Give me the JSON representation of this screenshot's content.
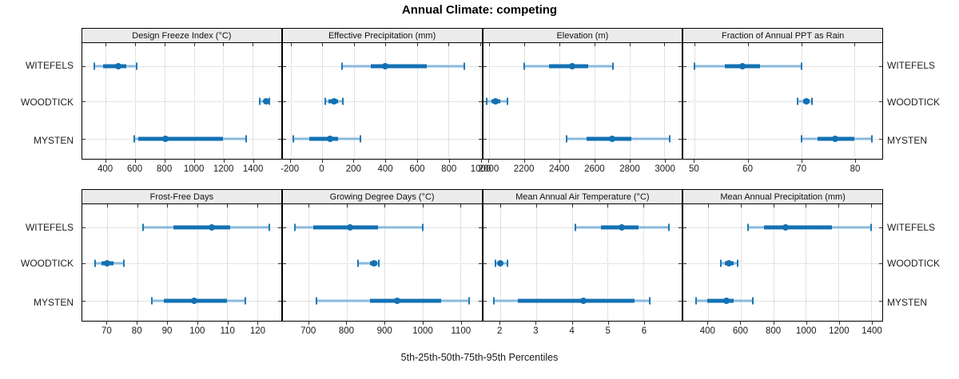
{
  "title": "Annual Climate: competing",
  "caption": "5th-25th-50th-75th-95th Percentiles",
  "sites": [
    "WITEFELS",
    "WOODTICK",
    "MYSTEN"
  ],
  "colors": {
    "median_and_box": "#1371b4",
    "whisker": "#8ab9dc",
    "cap": "#1f78b4",
    "grid": "#c6c6c6",
    "strip_bg": "#ececec",
    "panel_border": "#000000"
  },
  "chart_data": [
    {
      "type": "interval",
      "title": "Design Freeze Index (°C)",
      "row": 0,
      "col": 0,
      "xlim": [
        240,
        1595
      ],
      "ticks": [
        400,
        600,
        800,
        1000,
        1200,
        1400
      ],
      "series": [
        {
          "site": "WITEFELS",
          "p5": 320,
          "p25": 380,
          "p50": 487,
          "p75": 540,
          "p95": 612
        },
        {
          "site": "WOODTICK",
          "p5": 1447,
          "p25": 1477,
          "p50": 1492,
          "p75": 1508,
          "p95": 1515
        },
        {
          "site": "MYSTEN",
          "p5": 595,
          "p25": 620,
          "p50": 806,
          "p75": 1200,
          "p95": 1357
        }
      ]
    },
    {
      "type": "interval",
      "title": "Effective Precipitation (mm)",
      "row": 0,
      "col": 1,
      "xlim": [
        -250,
        1010
      ],
      "ticks": [
        -200,
        0,
        200,
        400,
        600,
        800,
        1000
      ],
      "series": [
        {
          "site": "WITEFELS",
          "p5": 125,
          "p25": 310,
          "p50": 400,
          "p75": 665,
          "p95": 900
        },
        {
          "site": "WOODTICK",
          "p5": 20,
          "p25": 40,
          "p50": 73,
          "p75": 100,
          "p95": 130
        },
        {
          "site": "MYSTEN",
          "p5": -185,
          "p25": -80,
          "p50": 50,
          "p75": 100,
          "p95": 245
        }
      ]
    },
    {
      "type": "interval",
      "title": "Elevation (m)",
      "row": 0,
      "col": 2,
      "xlim": [
        1964,
        3100
      ],
      "ticks": [
        2000,
        2200,
        2400,
        2600,
        2800,
        3000
      ],
      "series": [
        {
          "site": "WITEFELS",
          "p5": 2200,
          "p25": 2340,
          "p50": 2474,
          "p75": 2565,
          "p95": 2705
        },
        {
          "site": "WOODTICK",
          "p5": 1983,
          "p25": 2010,
          "p50": 2036,
          "p75": 2063,
          "p95": 2105
        },
        {
          "site": "MYSTEN",
          "p5": 2440,
          "p25": 2555,
          "p50": 2700,
          "p75": 2812,
          "p95": 3030
        }
      ]
    },
    {
      "type": "interval",
      "title": "Fraction of Annual PPT as Rain",
      "row": 0,
      "col": 3,
      "xlim": [
        47.9,
        85.2
      ],
      "ticks": [
        50,
        60,
        70,
        80
      ],
      "series": [
        {
          "site": "WITEFELS",
          "p5": 50,
          "p25": 55.6,
          "p50": 59,
          "p75": 62.3,
          "p95": 70
        },
        {
          "site": "WOODTICK",
          "p5": 69.3,
          "p25": 70.3,
          "p50": 71,
          "p75": 71.5,
          "p95": 72
        },
        {
          "site": "MYSTEN",
          "p5": 70,
          "p25": 73,
          "p50": 76.4,
          "p75": 80,
          "p95": 83.2
        }
      ]
    },
    {
      "type": "interval",
      "title": "Frost-Free Days",
      "row": 1,
      "col": 0,
      "xlim": [
        61.7,
        128
      ],
      "ticks": [
        70,
        80,
        90,
        100,
        110,
        120
      ],
      "series": [
        {
          "site": "WITEFELS",
          "p5": 82,
          "p25": 92,
          "p50": 105,
          "p75": 111,
          "p95": 124
        },
        {
          "site": "WOODTICK",
          "p5": 66,
          "p25": 68,
          "p50": 70,
          "p75": 72,
          "p95": 75.5
        },
        {
          "site": "MYSTEN",
          "p5": 85,
          "p25": 89,
          "p50": 99,
          "p75": 110,
          "p95": 116
        }
      ]
    },
    {
      "type": "interval",
      "title": "Growing Degree Days (°C)",
      "row": 1,
      "col": 1,
      "xlim": [
        631,
        1156
      ],
      "ticks": [
        700,
        800,
        900,
        1000,
        1100
      ],
      "series": [
        {
          "site": "WITEFELS",
          "p5": 663,
          "p25": 712,
          "p50": 808,
          "p75": 882,
          "p95": 1000
        },
        {
          "site": "WOODTICK",
          "p5": 830,
          "p25": 862,
          "p50": 873,
          "p75": 880,
          "p95": 885
        },
        {
          "site": "MYSTEN",
          "p5": 720,
          "p25": 861,
          "p50": 933,
          "p75": 1050,
          "p95": 1124
        }
      ]
    },
    {
      "type": "interval",
      "title": "Mean Annual Air Temperature (°C)",
      "row": 1,
      "col": 2,
      "xlim": [
        1.52,
        7.07
      ],
      "ticks": [
        2,
        3,
        4,
        5,
        6
      ],
      "series": [
        {
          "site": "WITEFELS",
          "p5": 4.1,
          "p25": 4.8,
          "p50": 5.4,
          "p75": 5.85,
          "p95": 6.7
        },
        {
          "site": "WOODTICK",
          "p5": 1.87,
          "p25": 1.93,
          "p50": 2.0,
          "p75": 2.07,
          "p95": 2.2
        },
        {
          "site": "MYSTEN",
          "p5": 1.83,
          "p25": 2.5,
          "p50": 4.33,
          "p75": 5.74,
          "p95": 6.18
        }
      ]
    },
    {
      "type": "interval",
      "title": "Mean Annual Precipitation (mm)",
      "row": 1,
      "col": 3,
      "xlim": [
        249,
        1468
      ],
      "ticks": [
        400,
        600,
        800,
        1000,
        1200,
        1400
      ],
      "series": [
        {
          "site": "WITEFELS",
          "p5": 645,
          "p25": 745,
          "p50": 875,
          "p75": 1160,
          "p95": 1400
        },
        {
          "site": "WOODTICK",
          "p5": 480,
          "p25": 505,
          "p50": 525,
          "p75": 558,
          "p95": 580
        },
        {
          "site": "MYSTEN",
          "p5": 325,
          "p25": 395,
          "p50": 510,
          "p75": 558,
          "p95": 675
        }
      ]
    }
  ]
}
